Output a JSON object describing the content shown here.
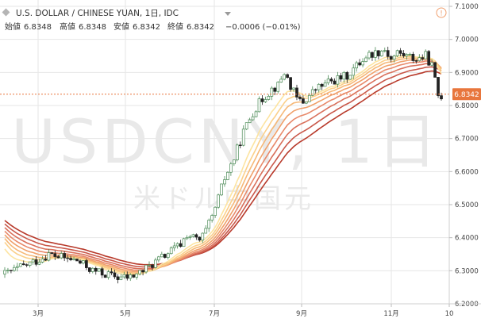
{
  "header": {
    "symbol_title": "U.S. DOLLAR / CHINESE YUAN, 1日, IDC",
    "open_label": "始値",
    "open_value": "6.8348",
    "high_label": "高値",
    "high_value": "6.8348",
    "low_label": "安値",
    "low_value": "6.8342",
    "close_label": "終値",
    "close_value": "6.8342",
    "change": "−0.0006 (−0.01%)",
    "alert_glyph": "!"
  },
  "watermark": {
    "symbol": "USDCNY, 1日",
    "name": "米ドル中国元"
  },
  "price_tag": "6.8342",
  "colors": {
    "up_candle": "#4a8a55",
    "down_candle": "#222222",
    "price_line": "#e8763d",
    "grid": "#e6e6e6",
    "ribbon_fast": "#fde4a0",
    "ribbon_slow": "#b83a2b"
  },
  "chart_data": {
    "type": "candlestick",
    "x_axis_labels": [
      "3月",
      "5月",
      "7月",
      "9月",
      "11月",
      "10"
    ],
    "y_axis_labels": [
      "7.1000",
      "7.0000",
      "6.9000",
      "6.8000",
      "6.7000",
      "6.6000",
      "6.5000",
      "6.4000",
      "6.3000",
      "6.2000"
    ],
    "ylim": [
      6.2,
      7.1
    ],
    "last_price": 6.8342,
    "price_path": [
      [
        0,
        6.29
      ],
      [
        5,
        6.31
      ],
      [
        10,
        6.33
      ],
      [
        14,
        6.35
      ],
      [
        18,
        6.34
      ],
      [
        23,
        6.33
      ],
      [
        28,
        6.3
      ],
      [
        32,
        6.29
      ],
      [
        36,
        6.28
      ],
      [
        40,
        6.28
      ],
      [
        44,
        6.3
      ],
      [
        47,
        6.32
      ],
      [
        50,
        6.34
      ],
      [
        53,
        6.36
      ],
      [
        56,
        6.38
      ],
      [
        58,
        6.41
      ],
      [
        60,
        6.4
      ],
      [
        62,
        6.39
      ],
      [
        64,
        6.42
      ],
      [
        66,
        6.46
      ],
      [
        68,
        6.52
      ],
      [
        70,
        6.58
      ],
      [
        73,
        6.64
      ],
      [
        76,
        6.72
      ],
      [
        79,
        6.78
      ],
      [
        82,
        6.82
      ],
      [
        85,
        6.85
      ],
      [
        87,
        6.86
      ],
      [
        89,
        6.9
      ],
      [
        91,
        6.86
      ],
      [
        93,
        6.82
      ],
      [
        95,
        6.81
      ],
      [
        97,
        6.83
      ],
      [
        99,
        6.85
      ],
      [
        101,
        6.86
      ],
      [
        103,
        6.87
      ],
      [
        106,
        6.88
      ],
      [
        109,
        6.89
      ],
      [
        112,
        6.92
      ],
      [
        115,
        6.95
      ],
      [
        118,
        6.96
      ],
      [
        121,
        6.97
      ],
      [
        123,
        6.94
      ],
      [
        125,
        6.96
      ],
      [
        128,
        6.95
      ],
      [
        131,
        6.94
      ],
      [
        134,
        6.95
      ],
      [
        136,
        6.92
      ],
      [
        138,
        6.83
      ]
    ],
    "ribbon": {
      "count": 8,
      "start_values": [
        6.38,
        6.4,
        6.41,
        6.42,
        6.43,
        6.44,
        6.45,
        6.46
      ],
      "colors": [
        "#fde4a0",
        "#fbd08a",
        "#f6b877",
        "#f0a06a",
        "#e8896a",
        "#d9705b",
        "#c9584a",
        "#b83a2b"
      ]
    }
  }
}
